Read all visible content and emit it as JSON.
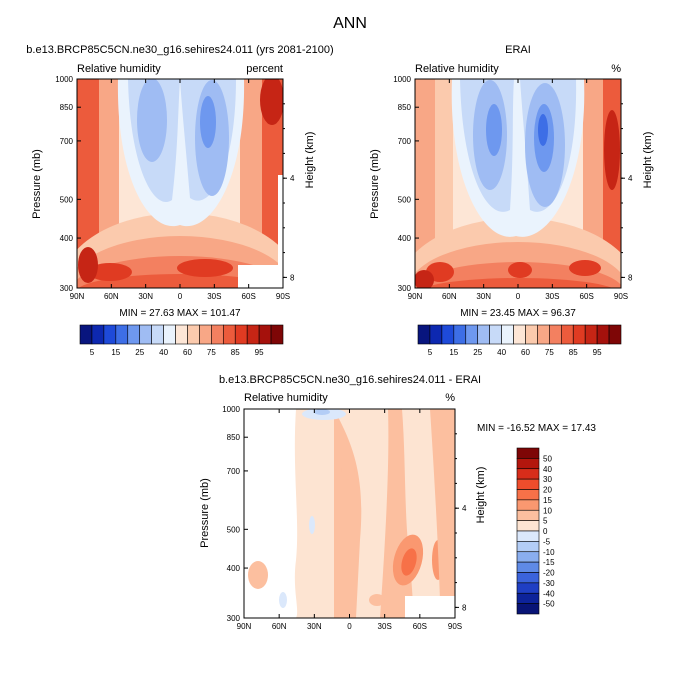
{
  "figure": {
    "title": "ANN"
  },
  "chart_data": [
    {
      "type": "heatmap",
      "panel": "model",
      "title": "b.e13.BRCP85C5CN.ne30_g16.sehires24.011 (yrs 2081-2100)",
      "left_label": "Relative humidity",
      "right_label": "percent",
      "ylabel": "Pressure (mb)",
      "y2label": "Height (km)",
      "x_ticks": [
        "90N",
        "60N",
        "30N",
        "0",
        "30S",
        "60S",
        "90S"
      ],
      "y_ticks": [
        "300",
        "400",
        "500",
        "700",
        "850",
        "1000"
      ],
      "y2_ticks": [
        "8",
        "4"
      ],
      "xlim": [
        90,
        -90
      ],
      "ylim": [
        1000,
        300
      ],
      "stats": "MIN =  27.63   MAX = 101.47",
      "colorbar": {
        "orientation": "horizontal",
        "labels": [
          "5",
          "15",
          "25",
          "40",
          "60",
          "75",
          "85",
          "95"
        ],
        "colors": [
          "#08157e",
          "#0d28b0",
          "#1e4ad9",
          "#3d6ee6",
          "#6e98ef",
          "#9fbcf3",
          "#c7daf8",
          "#eaf3fd",
          "#fde6d6",
          "#fbcaad",
          "#f8a786",
          "#f38060",
          "#ec5b3c",
          "#e03b22",
          "#c62515",
          "#a5110c",
          "#7e0606"
        ]
      }
    },
    {
      "type": "heatmap",
      "panel": "obs",
      "title": "ERAI",
      "left_label": "Relative humidity",
      "right_label": "%",
      "ylabel": "Pressure (mb)",
      "y2label": "Height (km)",
      "x_ticks": [
        "90N",
        "60N",
        "30N",
        "0",
        "30S",
        "60S",
        "90S"
      ],
      "y_ticks": [
        "300",
        "400",
        "500",
        "700",
        "850",
        "1000"
      ],
      "y2_ticks": [
        "8",
        "4"
      ],
      "xlim": [
        90,
        -90
      ],
      "ylim": [
        1000,
        300
      ],
      "stats": "MIN =  23.45   MAX =  96.37",
      "colorbar": {
        "orientation": "horizontal",
        "labels": [
          "5",
          "15",
          "25",
          "40",
          "60",
          "75",
          "85",
          "95"
        ],
        "colors": [
          "#08157e",
          "#0d28b0",
          "#1e4ad9",
          "#3d6ee6",
          "#6e98ef",
          "#9fbcf3",
          "#c7daf8",
          "#eaf3fd",
          "#fde6d6",
          "#fbcaad",
          "#f8a786",
          "#f38060",
          "#ec5b3c",
          "#e03b22",
          "#c62515",
          "#a5110c",
          "#7e0606"
        ]
      }
    },
    {
      "type": "heatmap",
      "panel": "diff",
      "title": "b.e13.BRCP85C5CN.ne30_g16.sehires24.011 - ERAI",
      "left_label": "Relative humidity",
      "right_label": "%",
      "ylabel": "Pressure (mb)",
      "y2label": "Height (km)",
      "x_ticks": [
        "90N",
        "60N",
        "30N",
        "0",
        "30S",
        "60S",
        "90S"
      ],
      "y_ticks": [
        "300",
        "400",
        "500",
        "700",
        "850",
        "1000"
      ],
      "y2_ticks": [
        "8",
        "4"
      ],
      "xlim": [
        90,
        -90
      ],
      "ylim": [
        1000,
        300
      ],
      "stats": "MIN = -16.52   MAX =  17.43",
      "colorbar": {
        "orientation": "vertical",
        "labels": [
          "50",
          "40",
          "30",
          "20",
          "15",
          "10",
          "5",
          "0",
          "-5",
          "-10",
          "-15",
          "-20",
          "-30",
          "-40",
          "-50"
        ],
        "colors": [
          "#7e0606",
          "#b3160d",
          "#d72d1a",
          "#ef4d2c",
          "#f77148",
          "#fa9870",
          "#fcbf9f",
          "#fde4d2",
          "#dbe8fb",
          "#b3cdf6",
          "#8aaeef",
          "#5f8ae6",
          "#3b63db",
          "#1f3fc4",
          "#0d239a",
          "#081476"
        ]
      }
    }
  ]
}
